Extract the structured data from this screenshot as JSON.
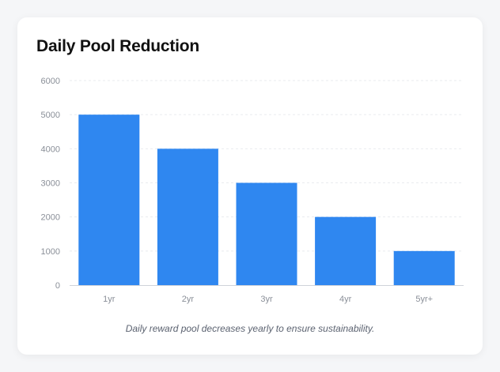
{
  "card": {
    "title": "Daily Pool Reduction",
    "caption": "Daily reward pool decreases yearly to ensure sustainability."
  },
  "chart_data": {
    "type": "bar",
    "title": "Daily Pool Reduction",
    "categories": [
      "1yr",
      "2yr",
      "3yr",
      "4yr",
      "5yr+"
    ],
    "values": [
      5000,
      4000,
      3000,
      2000,
      1000
    ],
    "yticks": [
      0,
      1000,
      2000,
      3000,
      4000,
      5000,
      6000
    ],
    "ylim": [
      0,
      6000
    ],
    "xlabel": "",
    "ylabel": "",
    "grid": true,
    "bar_color": "#2f87f0",
    "grid_color": "#e9ebef",
    "axis_color": "#cfd3d9"
  }
}
